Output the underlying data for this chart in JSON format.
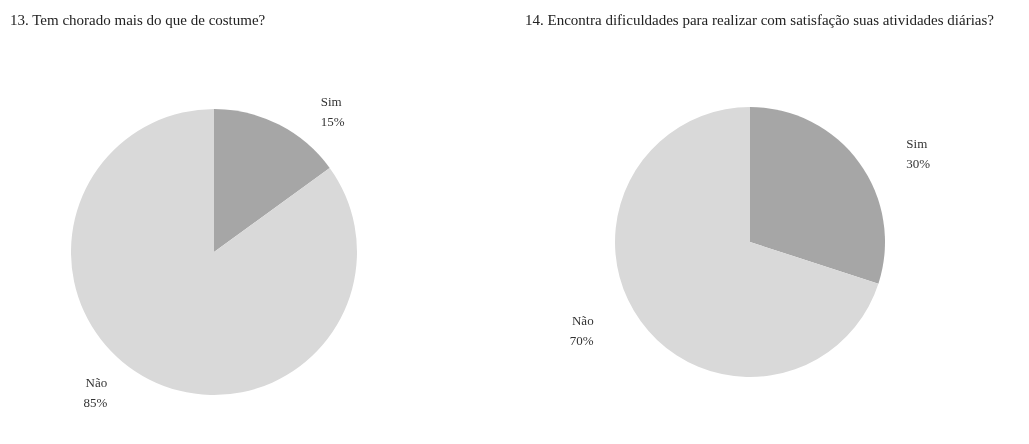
{
  "chart_data": [
    {
      "type": "pie",
      "title": "13. Tem chorado mais do que de costume?",
      "categories": [
        "Sim",
        "Não"
      ],
      "values": [
        15,
        85
      ],
      "value_labels": [
        "15%",
        "85%"
      ],
      "colors": [
        "#a6a6a6",
        "#d9d9d9"
      ],
      "legend": false
    },
    {
      "type": "pie",
      "title": "14. Encontra dificuldades para realizar com satisfação suas atividades diárias?",
      "categories": [
        "Sim",
        "Não"
      ],
      "values": [
        30,
        70
      ],
      "value_labels": [
        "30%",
        "70%"
      ],
      "colors": [
        "#a6a6a6",
        "#d9d9d9"
      ],
      "legend": false
    }
  ]
}
